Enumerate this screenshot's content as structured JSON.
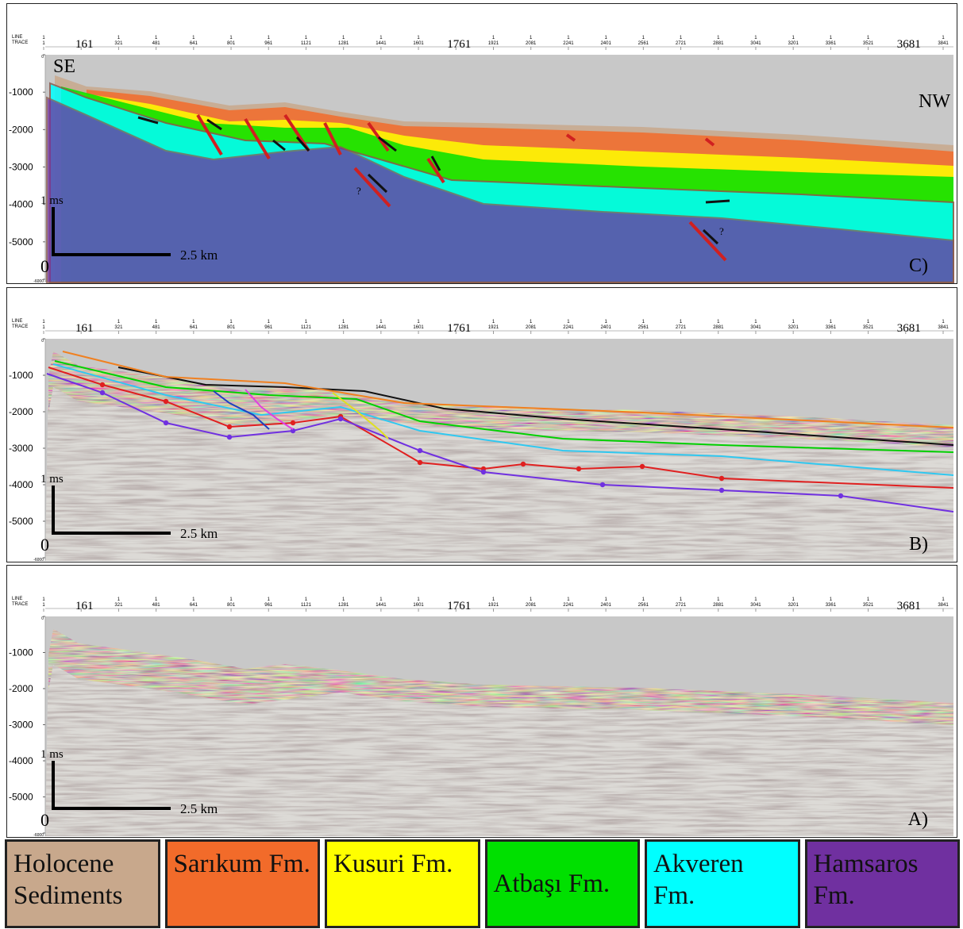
{
  "axis": {
    "line_label": "LINE",
    "trace_label": "TRACE",
    "line_number": "1",
    "traces": [
      "1",
      "161",
      "321",
      "481",
      "641",
      "801",
      "961",
      "1121",
      "1281",
      "1441",
      "1601",
      "1761",
      "1921",
      "2081",
      "2241",
      "2401",
      "2561",
      "2721",
      "2881",
      "3041",
      "3201",
      "3361",
      "3521",
      "3681",
      "3841"
    ],
    "depths": [
      "0",
      "-1000",
      "-2000",
      "-3000",
      "-4000",
      "-5000",
      "-6000"
    ]
  },
  "panels": [
    {
      "label": "C)",
      "scale_time": "1 ms",
      "scale_origin": "0",
      "scale_distance": "2.5 km",
      "direction_left": "SE",
      "direction_right": "NW",
      "fault_queries": [
        "?",
        "?"
      ]
    },
    {
      "label": "B)",
      "scale_time": "1 ms",
      "scale_origin": "0",
      "scale_distance": "2.5 km"
    },
    {
      "label": "A)",
      "scale_time": "1 ms",
      "scale_origin": "0",
      "scale_distance": "2.5 km"
    }
  ],
  "legend": [
    {
      "label": "Holocene Sediments",
      "color": "#c8a88c"
    },
    {
      "label": "Sarıkum Fm.",
      "color": "#f26b2a"
    },
    {
      "label": "Kusuri Fm.",
      "color": "#ffff00"
    },
    {
      "label": "Atbaşı Fm.",
      "color": "#00e000"
    },
    {
      "label": "Akveren Fm.",
      "color": "#00ffff"
    },
    {
      "label": "Hamsaros Fm.",
      "color": "#7030a0"
    }
  ]
}
